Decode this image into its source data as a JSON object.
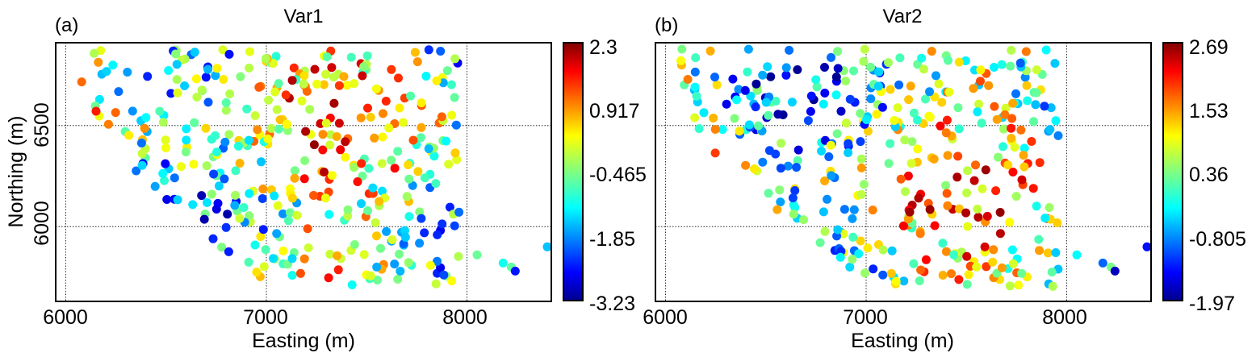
{
  "chart_data": [
    {
      "type": "scatter",
      "panel_label": "(a)",
      "title": "Var1",
      "xlabel": "Easting (m)",
      "ylabel": "Northing (m)",
      "xlim": [
        5950,
        8420
      ],
      "ylim": [
        5630,
        6910
      ],
      "xticks": [
        6000,
        7000,
        8000
      ],
      "yticks": [
        6000,
        6500
      ],
      "grid": true,
      "colormap": "jet",
      "colorbar": {
        "min": -3.23,
        "max": 2.3,
        "ticks": [
          2.3,
          0.917,
          -0.465,
          -1.85,
          -3.23
        ],
        "tick_labels": [
          "2.3",
          "0.917",
          "-0.465",
          "-1.85",
          "-3.23"
        ]
      },
      "seed": 11
    },
    {
      "type": "scatter",
      "panel_label": "(b)",
      "title": "Var2",
      "xlabel": "Easting (m)",
      "ylabel": "",
      "xlim": [
        5950,
        8420
      ],
      "ylim": [
        5630,
        6910
      ],
      "xticks": [
        6000,
        7000,
        8000
      ],
      "yticks": [
        6000,
        6500
      ],
      "grid": true,
      "colormap": "jet",
      "colorbar": {
        "min": -1.97,
        "max": 2.69,
        "ticks": [
          2.69,
          1.53,
          0.36,
          -0.805,
          -1.97
        ],
        "tick_labels": [
          "2.69",
          "1.53",
          "0.36",
          "-0.805",
          "-1.97"
        ]
      },
      "seed": 23
    }
  ]
}
